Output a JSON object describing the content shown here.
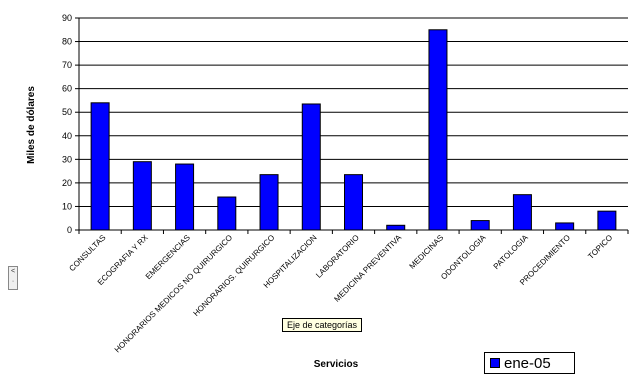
{
  "chart_data": {
    "type": "bar",
    "categories": [
      "CONSULTAS",
      "ECOGRAFIA Y RX",
      "EMERGENCIAS",
      "HONORARIOS MEDICOS NO QUIRURGICO",
      "HONORARIOS. QUIRURGICO",
      "HOSPITALIZACION",
      "LABORATORIO",
      "MEDICINA PREVENTIVA",
      "MEDICINAS",
      "ODONTOLOGIA",
      "PATOLOGIA",
      "PROCEDIMIENTOS",
      "TOPICO"
    ],
    "tick_labels": [
      "CONSULTAS",
      "ECOGRAFIA Y RX",
      "EMERGENCIAS",
      "HONORARIOS MEDICOS NO QUIRURGICO",
      "HONORARIOS. QUIRURGICO",
      "HOSPITALIZACION",
      "LABORATORIO",
      "MEDICINA PREVENTIVA",
      "MEDICINAS",
      "ODONTOLOGIA",
      "PATOLOGIA",
      "PROCEDIMIENTO",
      "TOPICO"
    ],
    "series": [
      {
        "name": "ene-05",
        "values": [
          54,
          29,
          28,
          14,
          23.5,
          53.5,
          23.5,
          2,
          85,
          4,
          15,
          3,
          8
        ],
        "color": "#0000ff"
      }
    ],
    "ylim": [
      0,
      90
    ],
    "yticks": [
      0,
      10,
      20,
      30,
      40,
      50,
      60,
      70,
      80,
      90
    ],
    "ylabel": "Miles de dólares",
    "xlabel": "Servicios",
    "grid": true,
    "legend": "bottom-right"
  },
  "tooltip": {
    "text": "Eje de categorías"
  },
  "legend": {
    "label": "ene-05"
  },
  "edge_handle": {
    "top": "<",
    "bottom": "·"
  }
}
